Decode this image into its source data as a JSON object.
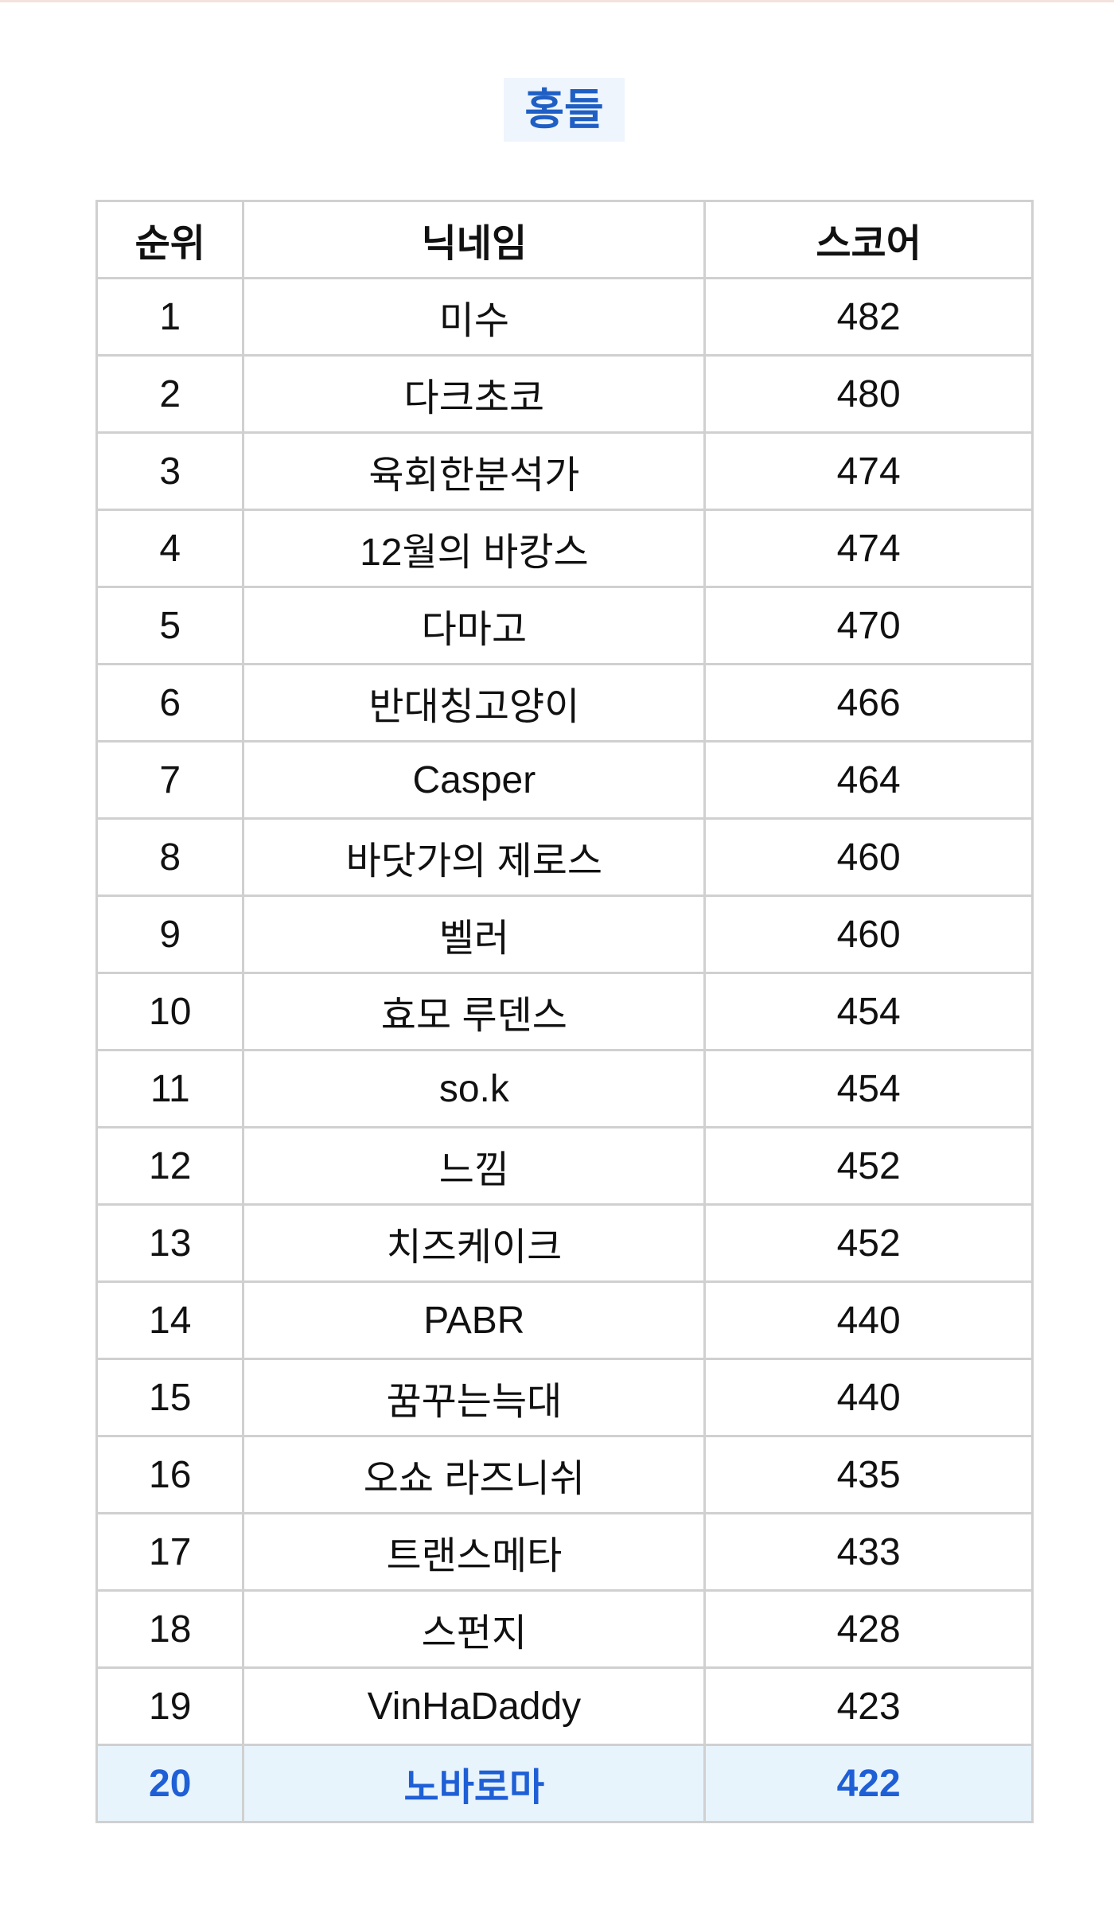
{
  "title": "홍들",
  "colors": {
    "accent": "#1f5fd6",
    "highlight_bg": "#e8f4fc",
    "title_bg": "#eef5fd"
  },
  "table": {
    "headers": [
      "순위",
      "닉네임",
      "스코어"
    ],
    "rows": [
      {
        "rank": "1",
        "nickname": "미수",
        "score": "482"
      },
      {
        "rank": "2",
        "nickname": "다크초코",
        "score": "480"
      },
      {
        "rank": "3",
        "nickname": "육회한분석가",
        "score": "474"
      },
      {
        "rank": "4",
        "nickname": "12월의 바캉스",
        "score": "474"
      },
      {
        "rank": "5",
        "nickname": "다마고",
        "score": "470"
      },
      {
        "rank": "6",
        "nickname": "반대칭고양이",
        "score": "466"
      },
      {
        "rank": "7",
        "nickname": "Casper",
        "score": "464"
      },
      {
        "rank": "8",
        "nickname": "바닷가의 제로스",
        "score": "460"
      },
      {
        "rank": "9",
        "nickname": "벨러",
        "score": "460"
      },
      {
        "rank": "10",
        "nickname": "효모 루덴스",
        "score": "454"
      },
      {
        "rank": "11",
        "nickname": "so.k",
        "score": "454"
      },
      {
        "rank": "12",
        "nickname": "느낌",
        "score": "452"
      },
      {
        "rank": "13",
        "nickname": "치즈케이크",
        "score": "452"
      },
      {
        "rank": "14",
        "nickname": "PABR",
        "score": "440"
      },
      {
        "rank": "15",
        "nickname": "꿈꾸는늑대",
        "score": "440"
      },
      {
        "rank": "16",
        "nickname": "오쇼 라즈니쉬",
        "score": "435"
      },
      {
        "rank": "17",
        "nickname": "트랜스메타",
        "score": "433"
      },
      {
        "rank": "18",
        "nickname": "스펀지",
        "score": "428"
      },
      {
        "rank": "19",
        "nickname": "VinHaDaddy",
        "score": "423"
      },
      {
        "rank": "20",
        "nickname": "노바로마",
        "score": "422",
        "highlighted": true
      }
    ]
  }
}
